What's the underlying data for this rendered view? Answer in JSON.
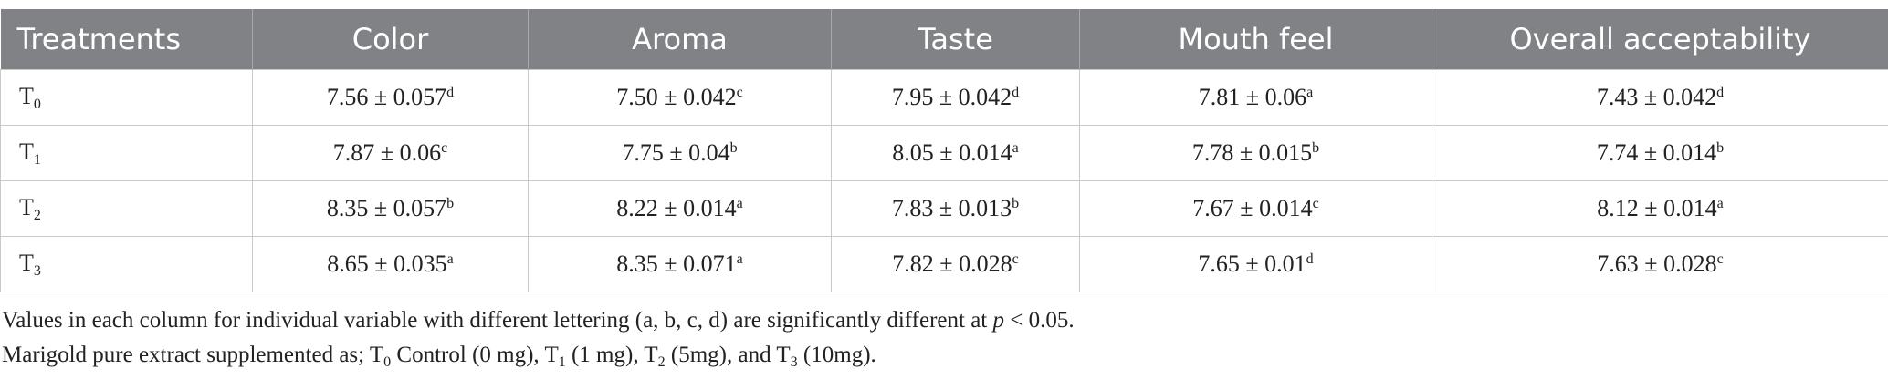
{
  "table": {
    "headers": [
      "Treatments",
      "Color",
      "Aroma",
      "Taste",
      "Mouth feel",
      "Overall acceptability"
    ],
    "rows": [
      {
        "treatment": {
          "text": "T",
          "sub": "0"
        },
        "cells": [
          {
            "value": "7.56 ± 0.057",
            "sig": "d"
          },
          {
            "value": "7.50 ± 0.042",
            "sig": "c"
          },
          {
            "value": "7.95 ± 0.042",
            "sig": "d"
          },
          {
            "value": "7.81 ± 0.06",
            "sig": "a"
          },
          {
            "value": "7.43 ± 0.042",
            "sig": "d"
          }
        ]
      },
      {
        "treatment": {
          "text": "T",
          "sub": "1"
        },
        "cells": [
          {
            "value": "7.87 ± 0.06",
            "sig": "c"
          },
          {
            "value": "7.75 ± 0.04",
            "sig": "b"
          },
          {
            "value": "8.05 ± 0.014",
            "sig": "a"
          },
          {
            "value": "7.78 ± 0.015",
            "sig": "b"
          },
          {
            "value": "7.74 ± 0.014",
            "sig": "b"
          }
        ]
      },
      {
        "treatment": {
          "text": "T",
          "sub": "2"
        },
        "cells": [
          {
            "value": "8.35 ± 0.057",
            "sig": "b"
          },
          {
            "value": "8.22 ± 0.014",
            "sig": "a"
          },
          {
            "value": "7.83 ± 0.013",
            "sig": "b"
          },
          {
            "value": "7.67 ± 0.014",
            "sig": "c"
          },
          {
            "value": "8.12 ± 0.014",
            "sig": "a"
          }
        ]
      },
      {
        "treatment": {
          "text": "T",
          "sub": "3"
        },
        "cells": [
          {
            "value": "8.65 ± 0.035",
            "sig": "a"
          },
          {
            "value": "8.35 ± 0.071",
            "sig": "a"
          },
          {
            "value": "7.82 ± 0.028",
            "sig": "c"
          },
          {
            "value": "7.65 ± 0.01",
            "sig": "d"
          },
          {
            "value": "7.63 ± 0.028",
            "sig": "c"
          }
        ]
      }
    ]
  },
  "footnotes": [
    [
      {
        "t": "Values in each column for individual variable with different lettering (a, b, c, d) are significantly different at "
      },
      {
        "t": "p",
        "s": "italic"
      },
      {
        "t": " < 0.05."
      }
    ],
    [
      {
        "t": "Marigold pure extract supplemented as; T"
      },
      {
        "t": "0",
        "s": "sub"
      },
      {
        "t": " Control (0 mg), T"
      },
      {
        "t": "1",
        "s": "sub"
      },
      {
        "t": " (1 mg), T"
      },
      {
        "t": "2",
        "s": "sub"
      },
      {
        "t": " (5mg), and T"
      },
      {
        "t": "3",
        "s": "sub"
      },
      {
        "t": " (10mg)."
      }
    ]
  ]
}
